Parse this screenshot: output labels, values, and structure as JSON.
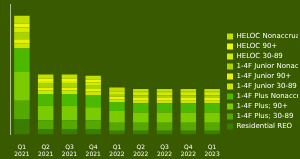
{
  "chart_data": {
    "type": "bar",
    "stacked": true,
    "categories": [
      "Q1\n2021",
      "Q2\n2021",
      "Q3\n2021",
      "Q4\n2021",
      "Q1\n2022",
      "Q2\n2022",
      "Q3\n2022",
      "Q4\n2022",
      "Q1\n2023"
    ],
    "series": [
      {
        "name": "Residential REO",
        "color": "#3a7d00",
        "values": [
          12,
          4,
          4,
          4,
          3,
          3,
          3,
          3,
          3
        ]
      },
      {
        "name": "1-4F Plus; 30-89",
        "color": "#55a800",
        "values": [
          14,
          7,
          7,
          7,
          6,
          6,
          6,
          6,
          6
        ]
      },
      {
        "name": "1-4F Plus; 90+",
        "color": "#7acc00",
        "values": [
          22,
          11,
          11,
          10,
          9,
          8,
          8,
          8,
          8
        ]
      },
      {
        "name": "1-4F Plus Nonaccrual",
        "color": "#4db800",
        "values": [
          18,
          9,
          9,
          9,
          7,
          7,
          7,
          7,
          7
        ]
      },
      {
        "name": "1-4F Junior 30-89",
        "color": "#c8e600",
        "values": [
          4,
          3,
          3,
          3,
          2,
          2,
          2,
          2,
          2
        ]
      },
      {
        "name": "1-4F Junior 90+",
        "color": "#e8f200",
        "values": [
          3,
          2,
          2,
          2,
          2,
          2,
          2,
          2,
          2
        ]
      },
      {
        "name": "1-4F Junior Nonaccrual",
        "color": "#aad400",
        "values": [
          5,
          3,
          3,
          3,
          2,
          2,
          2,
          2,
          2
        ]
      },
      {
        "name": "HELOC 30-89",
        "color": "#d0ed00",
        "values": [
          4,
          2,
          2,
          2,
          2,
          2,
          2,
          2,
          2
        ]
      },
      {
        "name": "HELOC 90+",
        "color": "#ecf700",
        "values": [
          3,
          2,
          2,
          2,
          1,
          1,
          1,
          1,
          1
        ]
      },
      {
        "name": "HELOC Nonaccrual",
        "color": "#bfe000",
        "values": [
          6,
          3,
          3,
          3,
          2,
          2,
          2,
          2,
          2
        ]
      }
    ],
    "ylim": [
      0,
      100
    ],
    "grid": false,
    "legend": "right",
    "tick_labels": "x"
  }
}
